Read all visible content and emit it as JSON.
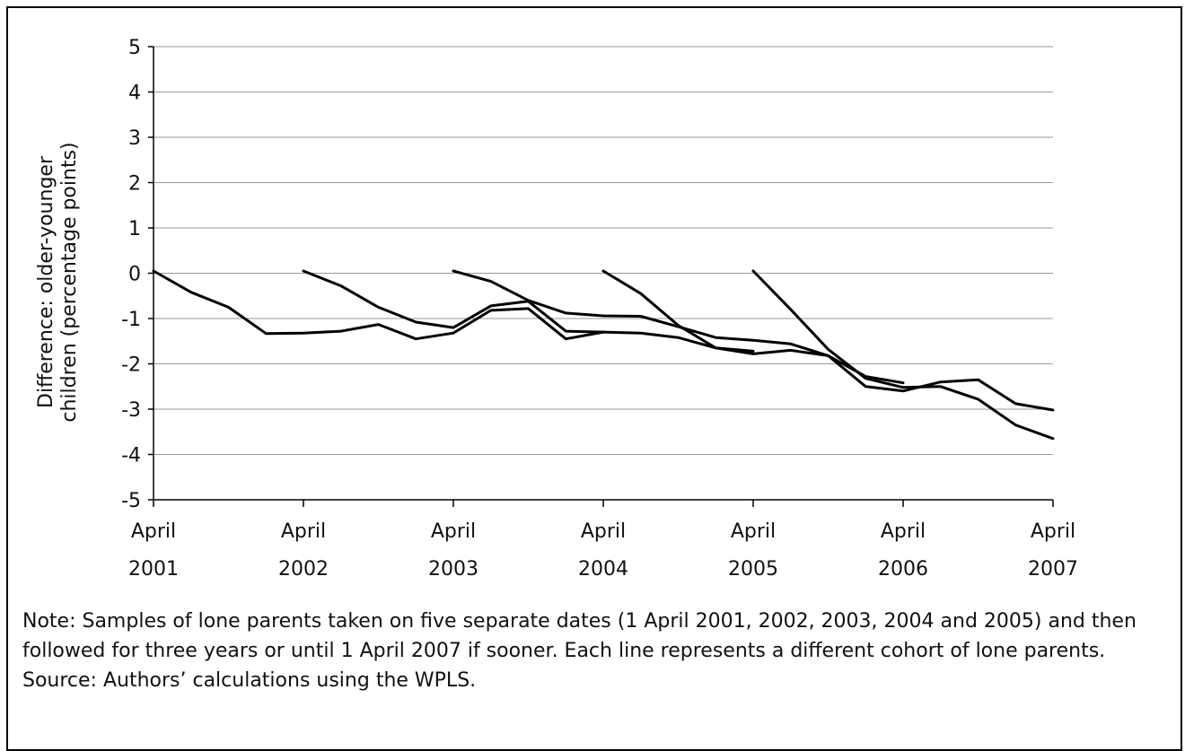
{
  "chart_data": {
    "type": "line",
    "ylabel": [
      "Difference: older-younger",
      "children (percentage points)"
    ],
    "xlabel": "",
    "ylim": [
      -5,
      5
    ],
    "yticks": [
      "5",
      "4",
      "3",
      "2",
      "1",
      "0",
      "-1",
      "-2",
      "-3",
      "-4",
      "-5"
    ],
    "xlim": [
      2001.25,
      2007.25
    ],
    "xticks": [
      [
        "April",
        "2001"
      ],
      [
        "April",
        "2002"
      ],
      [
        "April",
        "2003"
      ],
      [
        "April",
        "2004"
      ],
      [
        "April",
        "2005"
      ],
      [
        "April",
        "2006"
      ],
      [
        "April",
        "2007"
      ]
    ],
    "grid": "horizontal",
    "series": [
      {
        "x": [
          2001.25,
          2001.5,
          2001.75,
          2002.0,
          2002.25,
          2002.5,
          2002.75,
          2003.0,
          2003.25,
          2003.5,
          2003.75,
          2004.0,
          2004.25
        ],
        "values": [
          0.05,
          -0.42,
          -0.75,
          -1.33,
          -1.32,
          -1.28,
          -1.13,
          -1.45,
          -1.32,
          -0.82,
          -0.78,
          -1.45,
          -1.3
        ]
      },
      {
        "x": [
          2002.25,
          2002.5,
          2002.75,
          2003.0,
          2003.25,
          2003.5,
          2003.75,
          2004.0,
          2004.25,
          2004.5,
          2004.75,
          2005.0,
          2005.25
        ],
        "values": [
          0.05,
          -0.28,
          -0.75,
          -1.08,
          -1.2,
          -0.72,
          -0.62,
          -1.28,
          -1.3,
          -1.32,
          -1.42,
          -1.65,
          -1.72
        ]
      },
      {
        "x": [
          2003.25,
          2003.5,
          2003.75,
          2004.0,
          2004.25,
          2004.5,
          2004.75,
          2005.0,
          2005.25,
          2005.5,
          2005.75,
          2006.0,
          2006.25
        ],
        "values": [
          0.05,
          -0.18,
          -0.6,
          -0.88,
          -0.94,
          -0.95,
          -1.18,
          -1.42,
          -1.48,
          -1.56,
          -1.82,
          -2.28,
          -2.42
        ]
      },
      {
        "x": [
          2004.25,
          2004.5,
          2004.75,
          2005.0,
          2005.25,
          2005.5,
          2005.75,
          2006.0,
          2006.25,
          2006.5,
          2006.75,
          2007.0,
          2007.25
        ],
        "values": [
          0.05,
          -0.45,
          -1.15,
          -1.65,
          -1.78,
          -1.7,
          -1.82,
          -2.5,
          -2.6,
          -2.4,
          -2.35,
          -2.88,
          -3.02
        ]
      },
      {
        "x": [
          2005.25,
          2005.5,
          2005.75,
          2006.0,
          2006.25,
          2006.5,
          2006.75,
          2007.0,
          2007.25
        ],
        "values": [
          0.05,
          -0.8,
          -1.68,
          -2.32,
          -2.52,
          -2.5,
          -2.78,
          -3.35,
          -3.65
        ]
      }
    ]
  },
  "notes": {
    "note": "Note: Samples of lone parents taken on five separate dates (1 April 2001, 2002, 2003, 2004 and 2005) and then followed for three years or until 1 April 2007 if sooner. Each line represents a different cohort of lone parents.",
    "source": "Source: Authors’ calculations using the WPLS."
  }
}
